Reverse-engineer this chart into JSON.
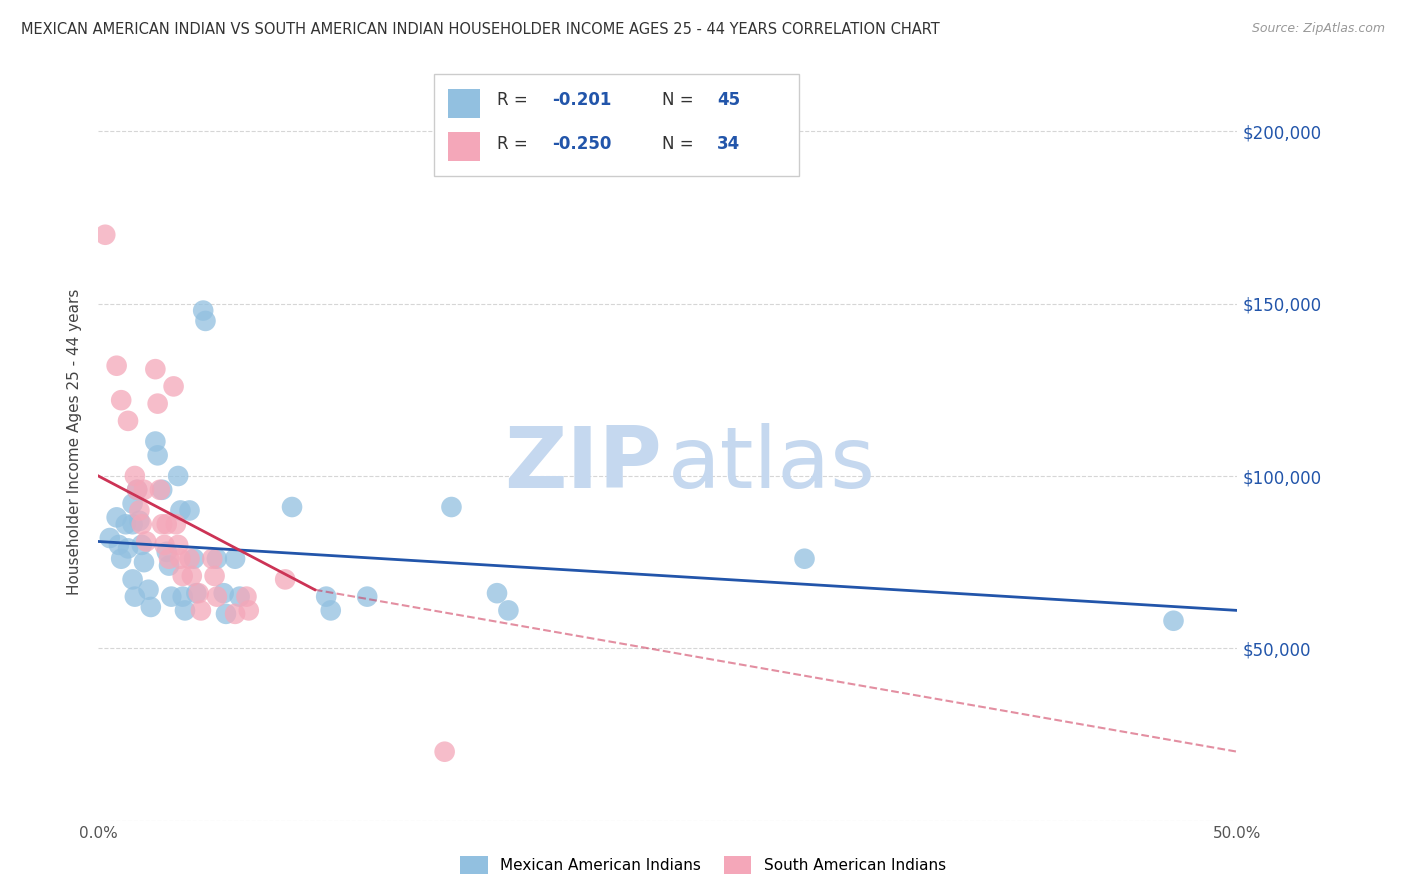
{
  "title": "MEXICAN AMERICAN INDIAN VS SOUTH AMERICAN INDIAN HOUSEHOLDER INCOME AGES 25 - 44 YEARS CORRELATION CHART",
  "source": "Source: ZipAtlas.com",
  "ylabel": "Householder Income Ages 25 - 44 years",
  "xlim": [
    0.0,
    0.5
  ],
  "ylim": [
    0,
    220000
  ],
  "xtick_positions": [
    0.0,
    0.05,
    0.1,
    0.15,
    0.2,
    0.25,
    0.3,
    0.35,
    0.4,
    0.45,
    0.5
  ],
  "ytick_positions": [
    0,
    50000,
    100000,
    150000,
    200000
  ],
  "yticklabels_right": [
    "",
    "$50,000",
    "$100,000",
    "$150,000",
    "$200,000"
  ],
  "blue_label": "Mexican American Indians",
  "pink_label": "South American Indians",
  "R_blue": "-0.201",
  "N_blue": "45",
  "R_pink": "-0.250",
  "N_pink": "34",
  "blue_color": "#92c0e0",
  "pink_color": "#f4a7b9",
  "blue_line_color": "#2255aa",
  "pink_line_color": "#cc3355",
  "blue_scatter": [
    [
      0.005,
      82000
    ],
    [
      0.008,
      88000
    ],
    [
      0.009,
      80000
    ],
    [
      0.01,
      76000
    ],
    [
      0.012,
      86000
    ],
    [
      0.013,
      79000
    ],
    [
      0.015,
      86000
    ],
    [
      0.015,
      92000
    ],
    [
      0.015,
      70000
    ],
    [
      0.016,
      65000
    ],
    [
      0.017,
      96000
    ],
    [
      0.018,
      87000
    ],
    [
      0.019,
      80000
    ],
    [
      0.02,
      75000
    ],
    [
      0.022,
      67000
    ],
    [
      0.023,
      62000
    ],
    [
      0.025,
      110000
    ],
    [
      0.026,
      106000
    ],
    [
      0.028,
      96000
    ],
    [
      0.03,
      78000
    ],
    [
      0.031,
      74000
    ],
    [
      0.032,
      65000
    ],
    [
      0.035,
      100000
    ],
    [
      0.036,
      90000
    ],
    [
      0.037,
      65000
    ],
    [
      0.038,
      61000
    ],
    [
      0.04,
      90000
    ],
    [
      0.042,
      76000
    ],
    [
      0.043,
      66000
    ],
    [
      0.046,
      148000
    ],
    [
      0.047,
      145000
    ],
    [
      0.052,
      76000
    ],
    [
      0.055,
      66000
    ],
    [
      0.056,
      60000
    ],
    [
      0.06,
      76000
    ],
    [
      0.062,
      65000
    ],
    [
      0.085,
      91000
    ],
    [
      0.1,
      65000
    ],
    [
      0.102,
      61000
    ],
    [
      0.118,
      65000
    ],
    [
      0.155,
      91000
    ],
    [
      0.175,
      66000
    ],
    [
      0.18,
      61000
    ],
    [
      0.31,
      76000
    ],
    [
      0.472,
      58000
    ]
  ],
  "pink_scatter": [
    [
      0.003,
      170000
    ],
    [
      0.008,
      132000
    ],
    [
      0.01,
      122000
    ],
    [
      0.013,
      116000
    ],
    [
      0.016,
      100000
    ],
    [
      0.017,
      96000
    ],
    [
      0.018,
      90000
    ],
    [
      0.019,
      86000
    ],
    [
      0.02,
      96000
    ],
    [
      0.021,
      81000
    ],
    [
      0.025,
      131000
    ],
    [
      0.026,
      121000
    ],
    [
      0.027,
      96000
    ],
    [
      0.028,
      86000
    ],
    [
      0.029,
      80000
    ],
    [
      0.03,
      86000
    ],
    [
      0.031,
      76000
    ],
    [
      0.033,
      126000
    ],
    [
      0.034,
      86000
    ],
    [
      0.035,
      80000
    ],
    [
      0.036,
      76000
    ],
    [
      0.037,
      71000
    ],
    [
      0.04,
      76000
    ],
    [
      0.041,
      71000
    ],
    [
      0.044,
      66000
    ],
    [
      0.045,
      61000
    ],
    [
      0.05,
      76000
    ],
    [
      0.051,
      71000
    ],
    [
      0.052,
      65000
    ],
    [
      0.06,
      60000
    ],
    [
      0.065,
      65000
    ],
    [
      0.066,
      61000
    ],
    [
      0.082,
      70000
    ],
    [
      0.152,
      20000
    ]
  ],
  "blue_line": [
    [
      0.0,
      81000
    ],
    [
      0.5,
      61000
    ]
  ],
  "pink_line_solid": [
    [
      0.0,
      100000
    ],
    [
      0.095,
      67000
    ]
  ],
  "pink_line_dashed": [
    [
      0.095,
      67000
    ],
    [
      0.5,
      20000
    ]
  ],
  "watermark_zip": "ZIP",
  "watermark_atlas": "atlas",
  "watermark_color": "#c5d8ef",
  "background_color": "#ffffff",
  "grid_color": "#cccccc",
  "right_axis_color": "#2255aa",
  "title_color": "#333333",
  "source_color": "#999999"
}
